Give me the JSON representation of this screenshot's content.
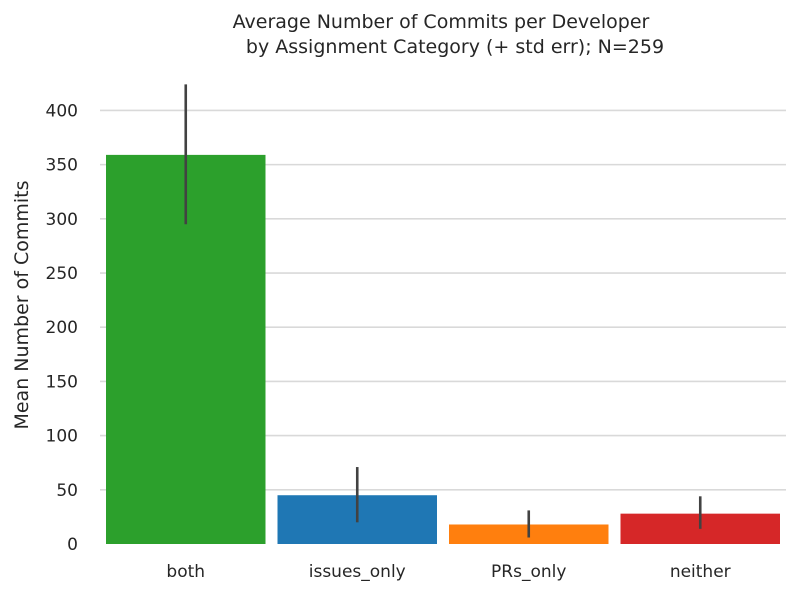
{
  "chart_data": {
    "type": "bar",
    "title_lines": [
      "Average Number of Commits per Developer",
      "by Assignment Category (+ std err); N=259"
    ],
    "xlabel": "",
    "ylabel": "Mean Number of Commits",
    "categories": [
      "both",
      "issues_only",
      "PRs_only",
      "neither"
    ],
    "values": [
      359,
      45,
      18,
      28
    ],
    "error_low": [
      295,
      20,
      6,
      14
    ],
    "error_high": [
      424,
      71,
      31,
      44
    ],
    "bar_colors": [
      "#2ca02c",
      "#1f77b4",
      "#ff7f0e",
      "#d62728"
    ],
    "ylim": [
      0,
      430
    ],
    "yticks": [
      0,
      50,
      100,
      150,
      200,
      250,
      300,
      350,
      400
    ],
    "grid": true,
    "legend": "none"
  }
}
